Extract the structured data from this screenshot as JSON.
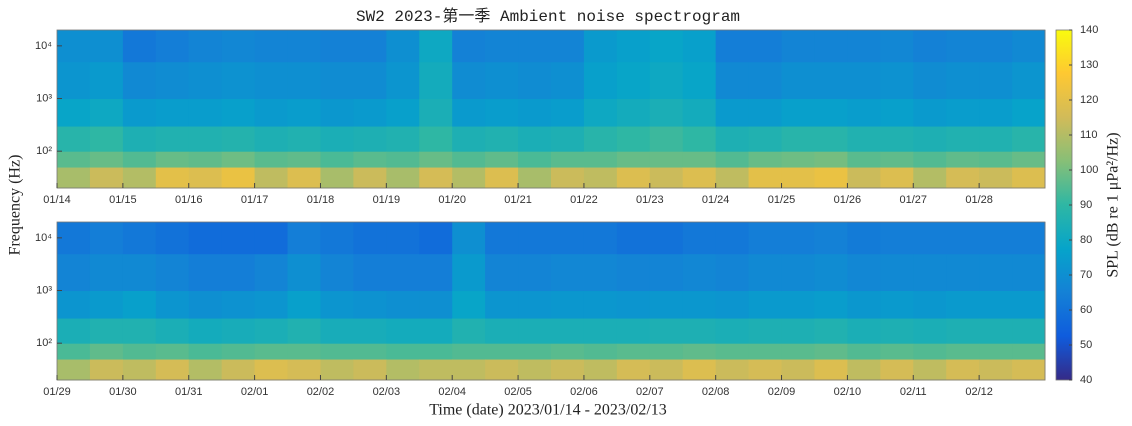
{
  "chart_data": {
    "type": "heatmap",
    "title": "SW2 2023-第一季 Ambient noise spectrogram",
    "x_label": "Time (date) 2023/01/14 - 2023/02/13",
    "y_label": "Frequency (Hz)",
    "colormap": [
      "#352a87",
      "#0f5cdd",
      "#1481d6",
      "#06a4ca",
      "#2eb7a4",
      "#87bf77",
      "#d1bb59",
      "#fec832",
      "#f9fb0e"
    ],
    "colorbar": {
      "label": "SPL (dB re 1 μPa²/Hz)",
      "lim": [
        40,
        140
      ],
      "ticks": [
        40,
        50,
        60,
        70,
        80,
        90,
        100,
        110,
        120,
        130,
        140
      ]
    },
    "panels": [
      {
        "categories": [
          "01/14",
          "01/15",
          "01/16",
          "01/17",
          "01/18",
          "01/19",
          "01/20",
          "01/21",
          "01/22",
          "01/23",
          "01/24",
          "01/25",
          "01/26",
          "01/27",
          "01/28"
        ],
        "ylim": [
          20,
          20000
        ],
        "log_y": true,
        "yticks": [
          {
            "value": 100,
            "label": "10²"
          },
          {
            "value": 1000,
            "label": "10³"
          },
          {
            "value": 10000,
            "label": "10⁴"
          }
        ],
        "bands": [
          20,
          50,
          100,
          300,
          1000,
          5000,
          20000
        ],
        "values": [
          [
            [
              108,
              96,
              88,
              78,
              72,
              70
            ],
            [
              114,
              98,
              90,
              80,
              74,
              70
            ]
          ],
          [
            [
              110,
              95,
              85,
              74,
              68,
              62
            ],
            [
              120,
              98,
              86,
              75,
              69,
              64
            ]
          ],
          [
            [
              118,
              97,
              86,
              75,
              70,
              66
            ],
            [
              122,
              99,
              87,
              76,
              71,
              67
            ]
          ],
          [
            [
              112,
              96,
              85,
              74,
              70,
              66
            ],
            [
              118,
              97,
              86,
              75,
              70,
              66
            ]
          ],
          [
            [
              108,
              94,
              84,
              73,
              69,
              65
            ],
            [
              114,
              96,
              85,
              74,
              69,
              65
            ]
          ],
          [
            [
              108,
              95,
              86,
              76,
              72,
              70
            ],
            [
              116,
              98,
              90,
              84,
              82,
              80
            ]
          ],
          [
            [
              110,
              95,
              85,
              74,
              69,
              65
            ],
            [
              118,
              97,
              86,
              75,
              70,
              66
            ]
          ],
          [
            [
              108,
              94,
              84,
              74,
              69,
              66
            ],
            [
              114,
              96,
              85,
              75,
              70,
              66
            ]
          ],
          [
            [
              112,
              96,
              88,
              80,
              76,
              74
            ],
            [
              118,
              98,
              90,
              82,
              78,
              76
            ]
          ],
          [
            [
              114,
              98,
              92,
              84,
              80,
              78
            ],
            [
              118,
              98,
              90,
              82,
              78,
              76
            ]
          ],
          [
            [
              112,
              95,
              85,
              74,
              68,
              64
            ],
            [
              120,
              98,
              86,
              74,
              68,
              64
            ]
          ],
          [
            [
              120,
              99,
              88,
              76,
              70,
              66
            ],
            [
              122,
              100,
              88,
              76,
              70,
              66
            ]
          ],
          [
            [
              114,
              96,
              86,
              75,
              70,
              66
            ],
            [
              118,
              97,
              86,
              76,
              71,
              67
            ]
          ],
          [
            [
              110,
              95,
              85,
              74,
              69,
              65
            ],
            [
              116,
              97,
              86,
              75,
              70,
              66
            ]
          ],
          [
            [
              114,
              96,
              86,
              75,
              70,
              66
            ],
            [
              118,
              98,
              88,
              77,
              72,
              68
            ]
          ]
        ]
      },
      {
        "categories": [
          "01/29",
          "01/30",
          "01/31",
          "02/01",
          "02/02",
          "02/03",
          "02/04",
          "02/05",
          "02/06",
          "02/07",
          "02/08",
          "02/09",
          "02/10",
          "02/11",
          "02/12"
        ],
        "ylim": [
          20,
          20000
        ],
        "log_y": true,
        "yticks": [
          {
            "value": 100,
            "label": "10²"
          },
          {
            "value": 1000,
            "label": "10³"
          },
          {
            "value": 10000,
            "label": "10⁴"
          }
        ],
        "bands": [
          20,
          50,
          100,
          300,
          1000,
          5000,
          20000
        ],
        "values": [
          [
            [
              108,
              94,
              84,
              72,
              66,
              62
            ],
            [
              114,
              97,
              86,
              74,
              68,
              64
            ]
          ],
          [
            [
              112,
              95,
              86,
              76,
              68,
              62
            ],
            [
              116,
              96,
              84,
              72,
              66,
              60
            ]
          ],
          [
            [
              110,
              94,
              82,
              70,
              64,
              58
            ],
            [
              114,
              95,
              83,
              71,
              64,
              58
            ]
          ],
          [
            [
              118,
              96,
              84,
              72,
              66,
              58
            ],
            [
              116,
              96,
              86,
              76,
              70,
              64
            ]
          ],
          [
            [
              112,
              95,
              83,
              72,
              66,
              62
            ],
            [
              114,
              95,
              83,
              71,
              64,
              60
            ]
          ],
          [
            [
              110,
              94,
              82,
              70,
              64,
              60
            ],
            [
              112,
              94,
              82,
              70,
              64,
              58
            ]
          ],
          [
            [
              112,
              95,
              86,
              78,
              74,
              70
            ],
            [
              114,
              95,
              84,
              72,
              66,
              62
            ]
          ],
          [
            [
              112,
              95,
              84,
              72,
              66,
              62
            ],
            [
              114,
              96,
              84,
              73,
              67,
              62
            ]
          ],
          [
            [
              112,
              95,
              84,
              73,
              67,
              62
            ],
            [
              116,
              96,
              84,
              72,
              66,
              60
            ]
          ],
          [
            [
              114,
              96,
              85,
              73,
              66,
              60
            ],
            [
              118,
              97,
              85,
              73,
              67,
              62
            ]
          ],
          [
            [
              114,
              96,
              84,
              72,
              66,
              62
            ],
            [
              116,
              96,
              85,
              74,
              68,
              64
            ]
          ],
          [
            [
              114,
              96,
              85,
              74,
              68,
              64
            ],
            [
              118,
              97,
              86,
              75,
              69,
              65
            ]
          ],
          [
            [
              112,
              95,
              84,
              73,
              67,
              63
            ],
            [
              116,
              96,
              85,
              74,
              68,
              64
            ]
          ],
          [
            [
              112,
              95,
              84,
              73,
              68,
              64
            ],
            [
              116,
              96,
              85,
              74,
              68,
              64
            ]
          ],
          [
            [
              114,
              96,
              85,
              74,
              68,
              64
            ],
            [
              116,
              96,
              85,
              74,
              68,
              64
            ]
          ]
        ]
      }
    ]
  }
}
